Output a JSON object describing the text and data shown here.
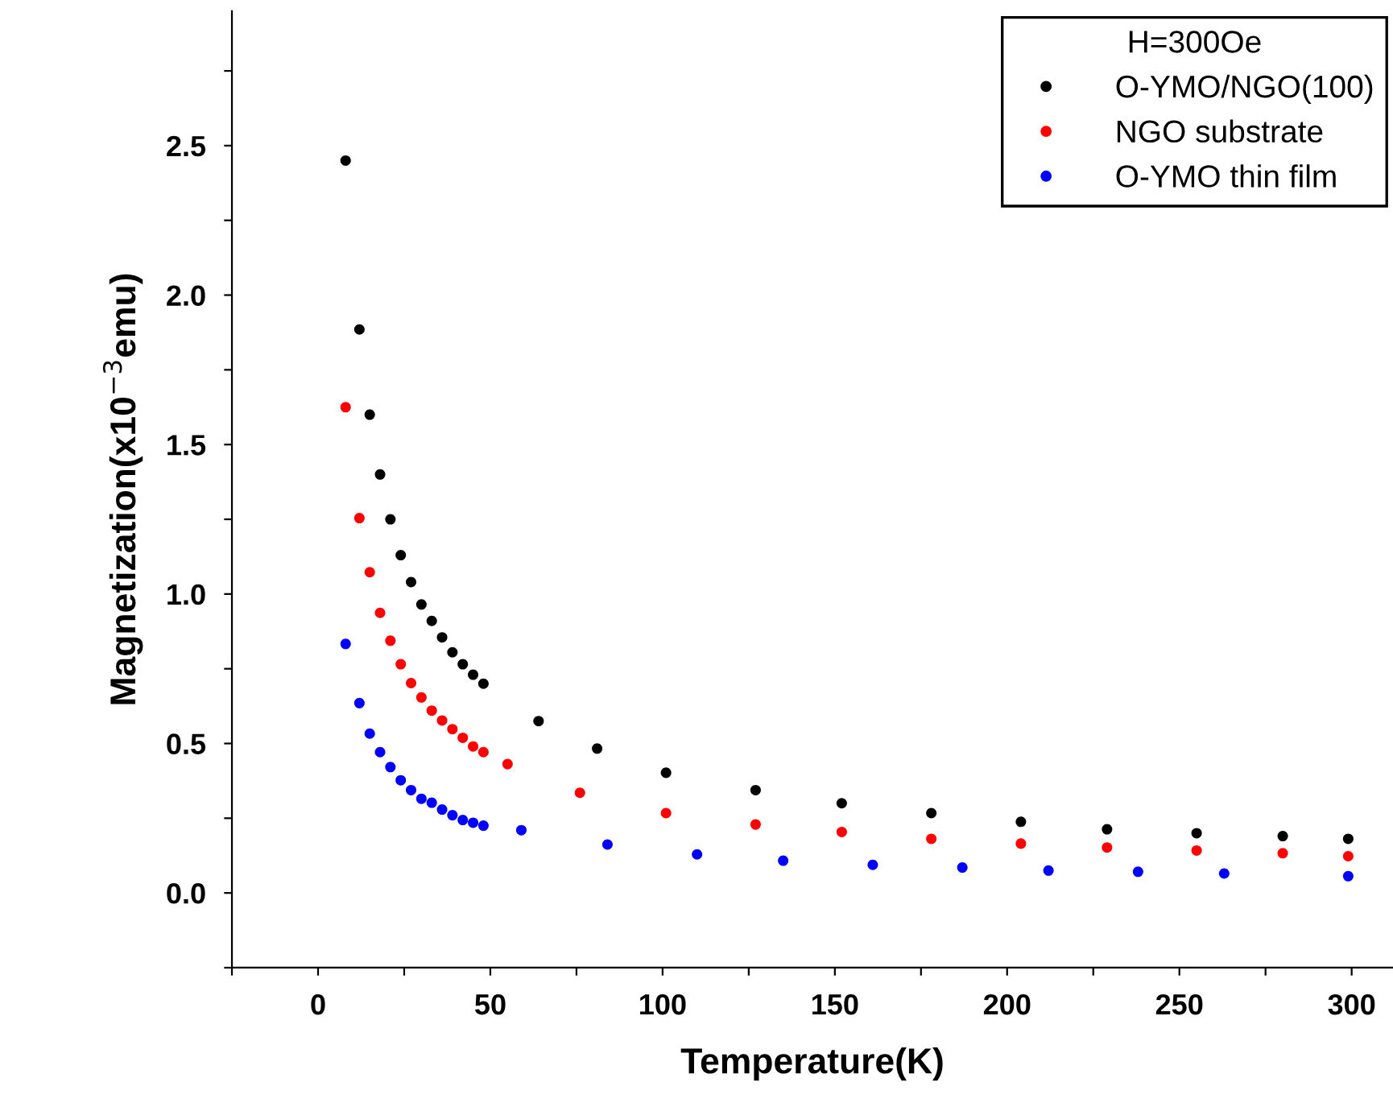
{
  "chart_data": {
    "type": "scatter",
    "xlabel": "Temperature(K)",
    "ylabel": "Magnetization(x10$^{−3}$emu)",
    "legend_title": "H=300Oe",
    "legend": "top right",
    "marker": "circle",
    "grid": false,
    "xlim": [
      -25,
      312
    ],
    "ylim": [
      -0.25,
      2.95
    ],
    "xticks": [
      {
        "value": -25,
        "label": null
      },
      0,
      {
        "value": 25,
        "label": null
      },
      50,
      {
        "value": 75,
        "label": null
      },
      100,
      {
        "value": 125,
        "label": null
      },
      150,
      {
        "value": 175,
        "label": null
      },
      200,
      {
        "value": 225,
        "label": null
      },
      250,
      {
        "value": 275,
        "label": null
      },
      300
    ],
    "yticks": [
      {
        "value": -0.25,
        "label": null
      },
      {
        "value": 0,
        "label": "0.0"
      },
      {
        "value": 0.25,
        "label": null
      },
      {
        "value": 0.5,
        "label": "0.5"
      },
      {
        "value": 0.75,
        "label": null
      },
      {
        "value": 1,
        "label": "1.0"
      },
      {
        "value": 1.25,
        "label": null
      },
      {
        "value": 1.5,
        "label": "1.5"
      },
      {
        "value": 1.75,
        "label": null
      },
      {
        "value": 2,
        "label": "2.0"
      },
      {
        "value": 2.25,
        "label": null
      },
      {
        "value": 2.5,
        "label": "2.5"
      },
      {
        "value": 2.75,
        "label": null
      }
    ],
    "series": [
      {
        "name": "O-YMO/NGO(100)",
        "color": "#000000",
        "x": [
          8,
          12,
          15,
          18,
          21,
          24,
          27,
          30,
          33,
          36,
          39,
          42,
          45,
          48,
          64,
          81,
          101,
          127,
          152,
          178,
          204,
          229,
          255,
          280,
          299
        ],
        "values": [
          2.45,
          1.885,
          1.6,
          1.4,
          1.25,
          1.13,
          1.04,
          0.965,
          0.91,
          0.855,
          0.805,
          0.765,
          0.73,
          0.7,
          0.575,
          0.483,
          0.402,
          0.344,
          0.3,
          0.267,
          0.238,
          0.213,
          0.2,
          0.19,
          0.181
        ]
      },
      {
        "name": "NGO substrate",
        "color": "#ff0000",
        "x": [
          8,
          12,
          15,
          18,
          21,
          24,
          27,
          30,
          33,
          36,
          39,
          42,
          45,
          48,
          55,
          76,
          101,
          127,
          152,
          178,
          204,
          229,
          255,
          280,
          299
        ],
        "values": [
          1.625,
          1.254,
          1.073,
          0.937,
          0.844,
          0.765,
          0.702,
          0.654,
          0.61,
          0.577,
          0.548,
          0.519,
          0.49,
          0.471,
          0.431,
          0.335,
          0.267,
          0.229,
          0.204,
          0.181,
          0.165,
          0.152,
          0.142,
          0.133,
          0.123
        ]
      },
      {
        "name": "O-YMO thin film",
        "color": "#0000ff",
        "x": [
          8,
          12,
          15,
          18,
          21,
          24,
          27,
          30,
          33,
          36,
          39,
          42,
          45,
          48,
          59,
          84,
          110,
          135,
          161,
          187,
          212,
          238,
          263,
          299
        ],
        "values": [
          0.833,
          0.635,
          0.533,
          0.471,
          0.421,
          0.377,
          0.344,
          0.315,
          0.302,
          0.279,
          0.26,
          0.244,
          0.235,
          0.225,
          0.21,
          0.162,
          0.129,
          0.108,
          0.094,
          0.085,
          0.075,
          0.071,
          0.065,
          0.056
        ]
      }
    ]
  }
}
